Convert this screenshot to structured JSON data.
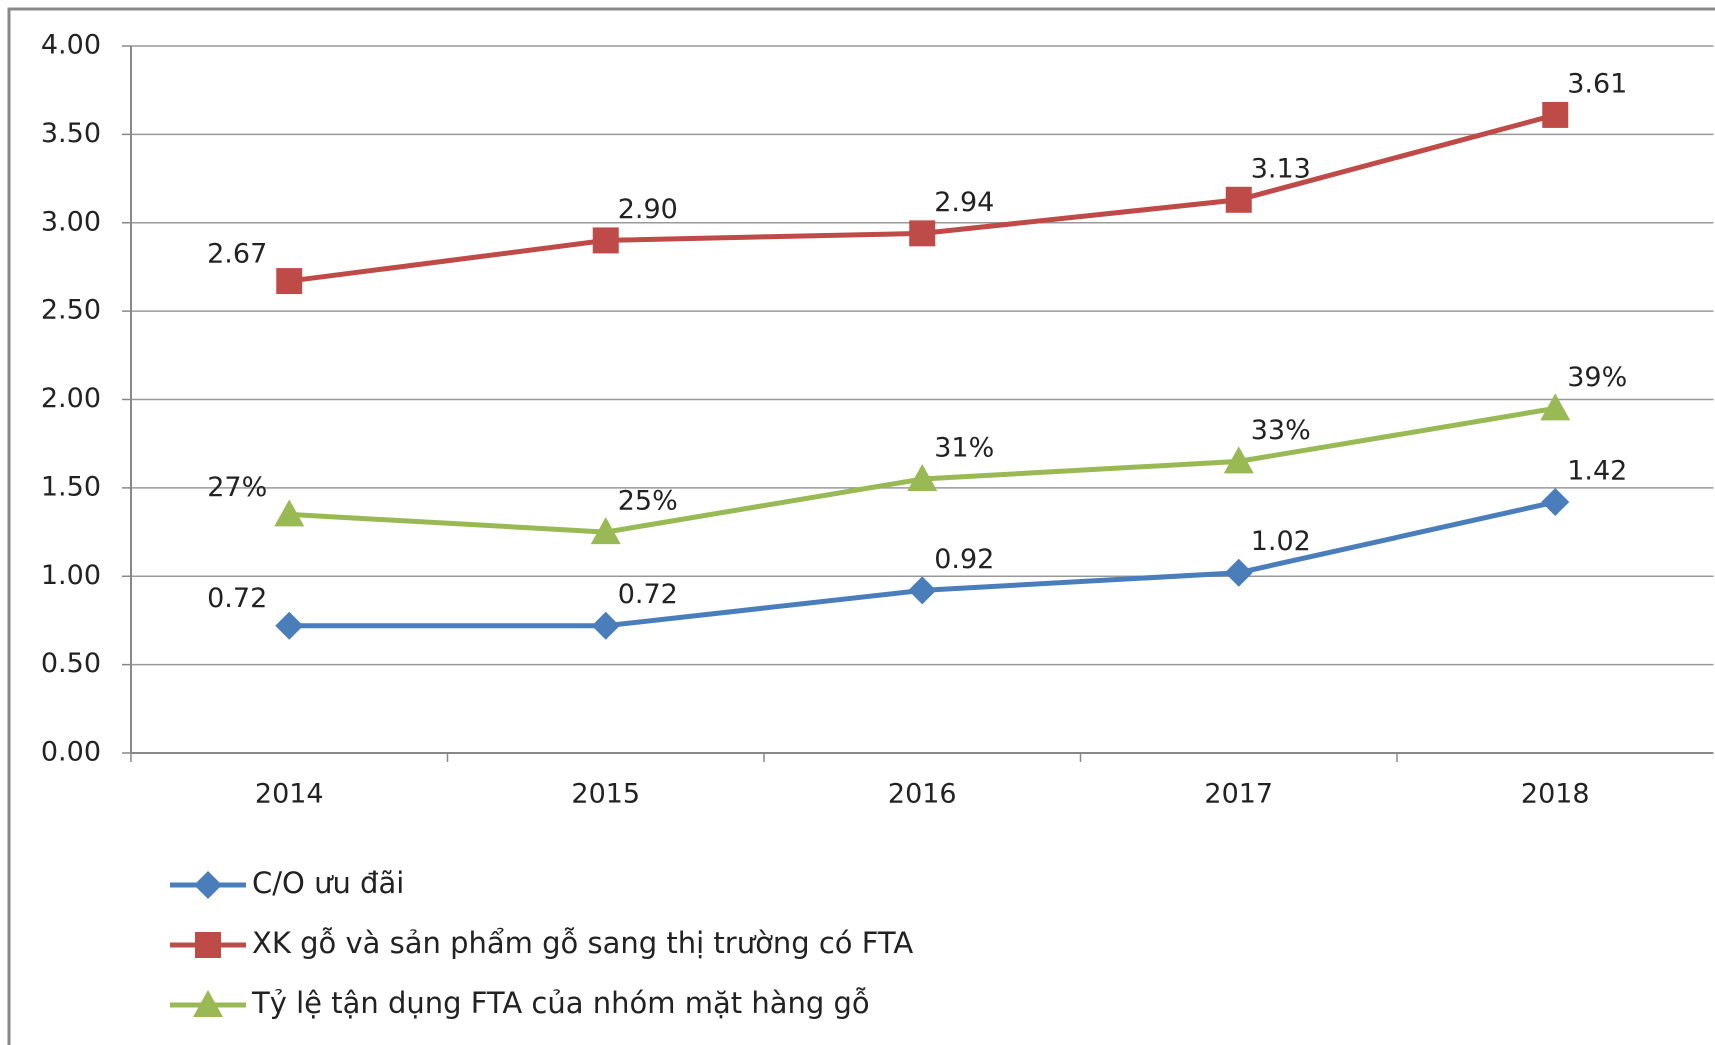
{
  "chart_data": {
    "type": "line",
    "categories": [
      "2014",
      "2015",
      "2016",
      "2017",
      "2018"
    ],
    "ylim": [
      0,
      4
    ],
    "yticks": [
      {
        "value": 0,
        "label": "0.00"
      },
      {
        "value": 0.5,
        "label": "0.50"
      },
      {
        "value": 1,
        "label": "1.00"
      },
      {
        "value": 1.5,
        "label": "1.50"
      },
      {
        "value": 2,
        "label": "2.00"
      },
      {
        "value": 2.5,
        "label": "2.50"
      },
      {
        "value": 3,
        "label": "3.00"
      },
      {
        "value": 3.5,
        "label": "3.50"
      },
      {
        "value": 4,
        "label": "4.00"
      }
    ],
    "y2lim": [
      0,
      80
    ],
    "grid": true,
    "legend": "bottom",
    "series": [
      {
        "name": "C/O ưu đãi",
        "color": "#4a7ebb",
        "marker": "diamond",
        "values": [
          0.72,
          0.72,
          0.92,
          1.02,
          1.42
        ]
      },
      {
        "name": "XK gỗ và sản phẩm gỗ sang thị trường có FTA",
        "color": "#be4b48",
        "marker": "square",
        "values": [
          2.67,
          2.9,
          2.94,
          3.13,
          3.61
        ],
        "value_labels": [
          "2.67",
          "2.90",
          "2.94",
          "3.13",
          "3.61"
        ]
      },
      {
        "name": "Tỷ lệ tận dụng FTA của nhóm mặt hàng gỗ",
        "color": "#98b954",
        "marker": "triangle",
        "axis": "y2",
        "values": [
          27,
          25,
          31,
          33,
          39
        ],
        "value_labels": [
          "27%",
          "25%",
          "31%",
          "33%",
          "39%"
        ]
      }
    ]
  }
}
